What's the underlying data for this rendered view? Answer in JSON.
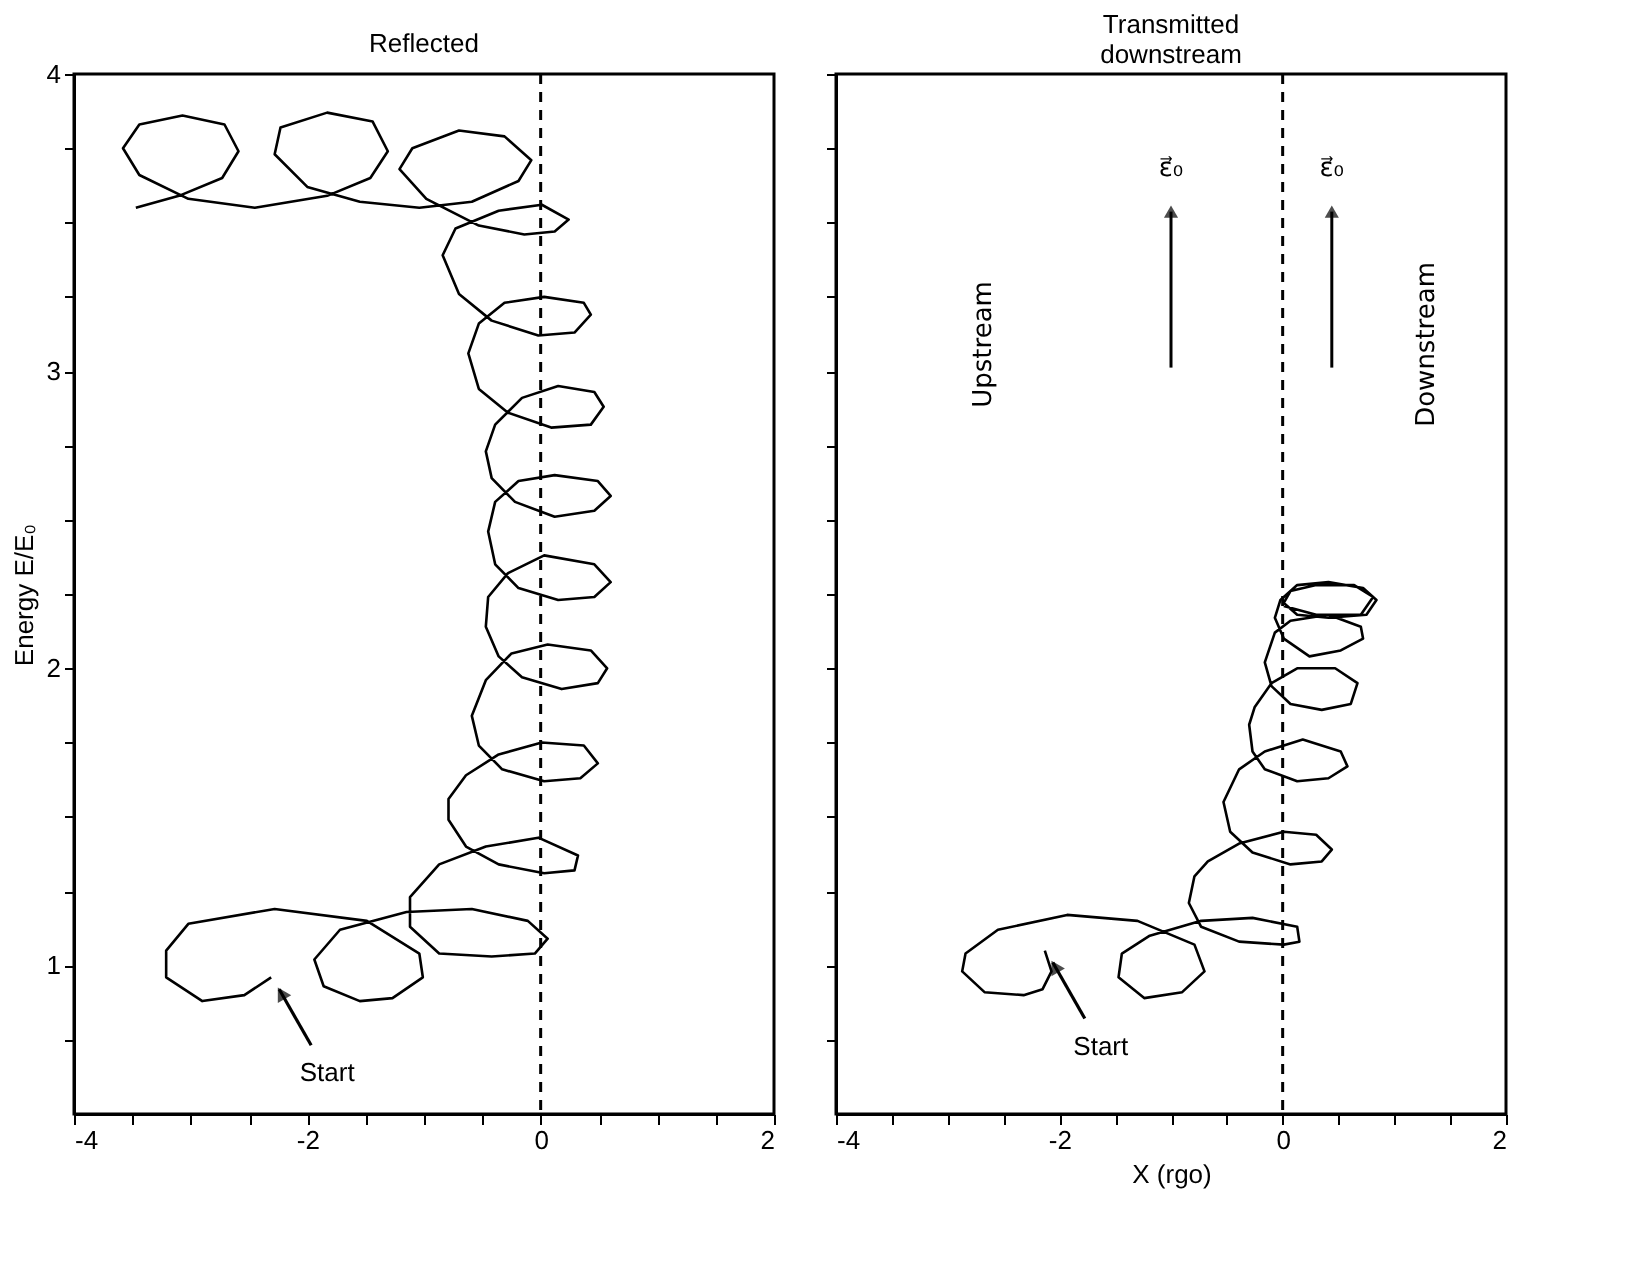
{
  "chart_data": [
    {
      "type": "line",
      "title": "Reflected",
      "ylabel": "Energy E/E₀",
      "series": [
        {
          "color": "#000000",
          "x": [
            -2.31,
            -2.54,
            -2.9,
            -3.21,
            -3.21,
            -3.02,
            -2.28,
            -1.49,
            -1.04,
            -1.01,
            -1.27,
            -1.55,
            -1.86,
            -1.94,
            -1.72,
            -1.15,
            -0.59,
            -0.11,
            0.06,
            -0.05,
            -0.42,
            -0.87,
            -1.12,
            -1.12,
            -0.87,
            -0.47,
            -0.02,
            0.32,
            0.29,
            0.03,
            -0.36,
            -0.64,
            -0.79,
            -0.79,
            -0.64,
            -0.36,
            0.01,
            0.37,
            0.49,
            0.34,
            0.03,
            -0.33,
            -0.53,
            -0.59,
            -0.47,
            -0.25,
            0.06,
            0.43,
            0.57,
            0.49,
            0.18,
            -0.16,
            -0.36,
            -0.47,
            -0.45,
            -0.28,
            0.03,
            0.46,
            0.6,
            0.46,
            0.15,
            -0.19,
            -0.39,
            -0.45,
            -0.39,
            -0.19,
            0.12,
            0.49,
            0.6,
            0.46,
            0.12,
            -0.22,
            -0.42,
            -0.47,
            -0.39,
            -0.16,
            0.15,
            0.46,
            0.54,
            0.43,
            0.09,
            -0.28,
            -0.53,
            -0.62,
            -0.53,
            -0.31,
            0.03,
            0.37,
            0.43,
            0.29,
            -0.02,
            -0.42,
            -0.7,
            -0.84,
            -0.73,
            -0.36,
            0.01,
            0.24,
            0.12,
            -0.14,
            -0.53,
            -0.98,
            -1.21,
            -1.1,
            -0.7,
            -0.31,
            -0.08,
            -0.19,
            -0.59,
            -1.04,
            -1.55,
            -2.0,
            -2.28,
            -2.23,
            -1.83,
            -1.44,
            -1.31,
            -1.46,
            -1.83,
            -2.45,
            -3.02,
            -3.44,
            -3.58,
            -3.44,
            -3.07,
            -2.71,
            -2.59,
            -2.73,
            -3.1,
            -3.47
          ],
          "values": [
            0.96,
            0.9,
            0.88,
            0.96,
            1.05,
            1.14,
            1.19,
            1.15,
            1.04,
            0.96,
            0.89,
            0.88,
            0.93,
            1.02,
            1.12,
            1.18,
            1.19,
            1.15,
            1.09,
            1.04,
            1.03,
            1.04,
            1.13,
            1.23,
            1.34,
            1.4,
            1.43,
            1.37,
            1.32,
            1.31,
            1.34,
            1.4,
            1.49,
            1.56,
            1.64,
            1.71,
            1.75,
            1.74,
            1.68,
            1.63,
            1.62,
            1.66,
            1.74,
            1.84,
            1.96,
            2.05,
            2.08,
            2.06,
            2.0,
            1.95,
            1.93,
            1.97,
            2.04,
            2.14,
            2.24,
            2.32,
            2.38,
            2.35,
            2.29,
            2.24,
            2.23,
            2.27,
            2.35,
            2.46,
            2.56,
            2.63,
            2.65,
            2.63,
            2.58,
            2.53,
            2.51,
            2.56,
            2.64,
            2.73,
            2.82,
            2.91,
            2.95,
            2.93,
            2.88,
            2.82,
            2.81,
            2.86,
            2.94,
            3.06,
            3.16,
            3.23,
            3.25,
            3.23,
            3.19,
            3.13,
            3.12,
            3.17,
            3.26,
            3.39,
            3.48,
            3.54,
            3.56,
            3.51,
            3.47,
            3.46,
            3.49,
            3.58,
            3.68,
            3.75,
            3.81,
            3.79,
            3.71,
            3.64,
            3.57,
            3.55,
            3.57,
            3.62,
            3.73,
            3.82,
            3.87,
            3.84,
            3.74,
            3.65,
            3.59,
            3.55,
            3.58,
            3.66,
            3.75,
            3.83,
            3.86,
            3.83,
            3.74,
            3.65,
            3.59,
            3.55
          ]
        }
      ],
      "xlim": [
        -4,
        2
      ],
      "ylim": [
        0.5,
        4
      ],
      "xticks": [
        -4,
        {
          "value": -3.5,
          "label": null
        },
        {
          "value": -3,
          "label": null
        },
        {
          "value": -2.5,
          "label": null
        },
        -2,
        {
          "value": -1.5,
          "label": null
        },
        {
          "value": -1,
          "label": null
        },
        {
          "value": -0.5,
          "label": null
        },
        0,
        {
          "value": 0.5,
          "label": null
        },
        {
          "value": 1,
          "label": null
        },
        {
          "value": 1.5,
          "label": null
        },
        2
      ],
      "yticks": [
        {
          "value": 0.75,
          "label": null
        },
        1,
        {
          "value": 1.25,
          "label": null
        },
        {
          "value": 1.5,
          "label": null
        },
        {
          "value": 1.75,
          "label": null
        },
        2,
        {
          "value": 2.25,
          "label": null
        },
        {
          "value": 2.5,
          "label": null
        },
        {
          "value": 2.75,
          "label": null
        },
        3,
        {
          "value": 3.25,
          "label": null
        },
        {
          "value": 3.5,
          "label": null
        },
        {
          "value": 3.75,
          "label": null
        },
        4
      ],
      "ref_lines": [
        {
          "axis": "x",
          "value": 0,
          "color": "#000000",
          "line_style": "dashed"
        }
      ],
      "annotations": [
        {
          "text": "Start",
          "x": -2.31,
          "y": 0.96
        }
      ]
    },
    {
      "type": "line",
      "title": "Transmitted downstream",
      "xlabel": "X (rgo)",
      "series": [
        {
          "color": "#000000",
          "x": [
            -2.13,
            -2.07,
            -2.15,
            -2.32,
            -2.67,
            -2.87,
            -2.84,
            -2.55,
            -1.93,
            -1.3,
            -0.79,
            -0.7,
            -0.9,
            -1.24,
            -1.47,
            -1.44,
            -1.19,
            -0.73,
            -0.27,
            0.13,
            0.15,
            0.01,
            -0.39,
            -0.73,
            -0.84,
            -0.79,
            -0.67,
            -0.39,
            0.01,
            0.3,
            0.44,
            0.35,
            0.07,
            -0.27,
            -0.47,
            -0.53,
            -0.39,
            -0.16,
            0.18,
            0.52,
            0.58,
            0.41,
            0.13,
            -0.16,
            -0.27,
            -0.3,
            -0.25,
            -0.1,
            0.13,
            0.47,
            0.67,
            0.61,
            0.35,
            0.07,
            -0.1,
            -0.16,
            -0.07,
            0.07,
            0.41,
            0.7,
            0.72,
            0.52,
            0.24,
            0.01,
            -0.07,
            -0.02,
            0.13,
            0.41,
            0.72,
            0.84,
            0.75,
            0.41,
            0.13,
            0.01,
            0.07,
            0.3,
            0.64,
            0.81,
            0.7,
            0.3,
            0.01
          ],
          "values": [
            1.05,
            0.98,
            0.92,
            0.9,
            0.91,
            0.98,
            1.04,
            1.12,
            1.17,
            1.15,
            1.07,
            0.98,
            0.91,
            0.89,
            0.96,
            1.04,
            1.1,
            1.15,
            1.16,
            1.13,
            1.08,
            1.07,
            1.08,
            1.13,
            1.21,
            1.3,
            1.35,
            1.41,
            1.45,
            1.44,
            1.39,
            1.35,
            1.34,
            1.38,
            1.45,
            1.55,
            1.66,
            1.72,
            1.76,
            1.72,
            1.67,
            1.63,
            1.62,
            1.66,
            1.72,
            1.81,
            1.87,
            1.95,
            2.0,
            2.0,
            1.95,
            1.88,
            1.86,
            1.88,
            1.94,
            2.02,
            2.12,
            2.16,
            2.18,
            2.14,
            2.1,
            2.06,
            2.04,
            2.1,
            2.17,
            2.23,
            2.28,
            2.29,
            2.27,
            2.23,
            2.18,
            2.17,
            2.18,
            2.22,
            2.26,
            2.28,
            2.28,
            2.24,
            2.18,
            2.18,
            2.21
          ]
        }
      ],
      "xlim": [
        -4,
        2
      ],
      "ylim": [
        0.5,
        4
      ],
      "xticks": [
        -4,
        {
          "value": -3.5,
          "label": null
        },
        {
          "value": -3,
          "label": null
        },
        {
          "value": -2.5,
          "label": null
        },
        -2,
        {
          "value": -1.5,
          "label": null
        },
        {
          "value": -1,
          "label": null
        },
        {
          "value": -0.5,
          "label": null
        },
        0,
        {
          "value": 0.5,
          "label": null
        },
        {
          "value": 1,
          "label": null
        },
        {
          "value": 1.5,
          "label": null
        },
        2
      ],
      "yticks": [
        {
          "value": 0.75,
          "label": null
        },
        1,
        {
          "value": 1.25,
          "label": null
        },
        {
          "value": 1.5,
          "label": null
        },
        {
          "value": 1.75,
          "label": null
        },
        2,
        {
          "value": 2.25,
          "label": null
        },
        {
          "value": 2.5,
          "label": null
        },
        {
          "value": 2.75,
          "label": null
        },
        3,
        {
          "value": 3.25,
          "label": null
        },
        {
          "value": 3.5,
          "label": null
        },
        {
          "value": 3.75,
          "label": null
        },
        4
      ],
      "tick_labels": "x",
      "ref_lines": [
        {
          "axis": "x",
          "value": 0,
          "color": "#000000",
          "line_style": "dashed"
        }
      ],
      "annotations": [
        {
          "text": "Start",
          "x": -2.13,
          "y": 1.05
        },
        "Upstream",
        "ε⃗₀",
        "ε⃗₀",
        "Downstream"
      ]
    }
  ]
}
